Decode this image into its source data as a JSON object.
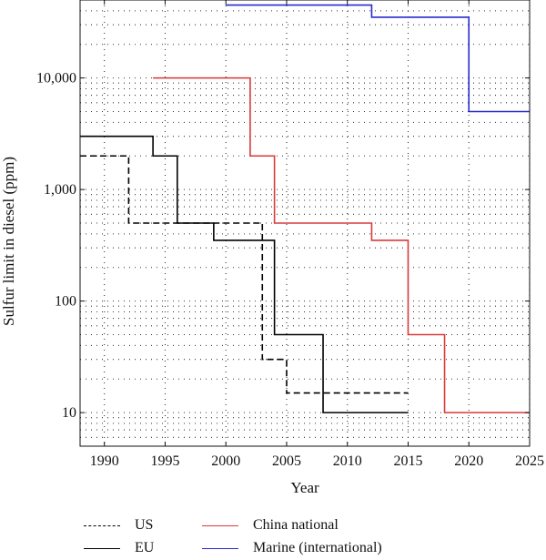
{
  "chart_data": {
    "type": "line",
    "xlabel": "Year",
    "ylabel": "Sulfur limit in diesel (ppm)",
    "xlim": [
      1988,
      2025
    ],
    "ylim": [
      5,
      50000
    ],
    "yscale": "log",
    "grid": true,
    "xticks": [
      1990,
      1995,
      2000,
      2005,
      2010,
      2015,
      2020,
      2025
    ],
    "xtick_labels": [
      "1990",
      "1995",
      "2000",
      "2005",
      "2010",
      "2015",
      "2020",
      "2025"
    ],
    "yticks": [
      10,
      100,
      1000,
      10000
    ],
    "ytick_labels": [
      "10",
      "100",
      "1,000",
      "10,000"
    ],
    "legend_position": "bottom",
    "series": [
      {
        "name": "US",
        "color": "#000000",
        "style": "dashed",
        "step": true,
        "x": [
          1988,
          1992,
          2003,
          2005,
          2015
        ],
        "y": [
          2000,
          500,
          30,
          15,
          15
        ]
      },
      {
        "name": "EU",
        "color": "#000000",
        "style": "solid",
        "step": true,
        "x": [
          1988,
          1994,
          1996,
          1999,
          2004,
          2008,
          2015
        ],
        "y": [
          3000,
          2000,
          500,
          350,
          50,
          10,
          10
        ]
      },
      {
        "name": "China national",
        "color": "#d93a3a",
        "style": "solid",
        "step": true,
        "x": [
          1994,
          2002,
          2004,
          2012,
          2015,
          2018,
          2025
        ],
        "y": [
          10000,
          2000,
          500,
          350,
          50,
          10,
          10
        ]
      },
      {
        "name": "Marine (international)",
        "color": "#2a2ad0",
        "style": "solid",
        "step": true,
        "x": [
          2000,
          2012,
          2020,
          2025
        ],
        "y": [
          45000,
          35000,
          5000,
          5000
        ]
      }
    ]
  }
}
